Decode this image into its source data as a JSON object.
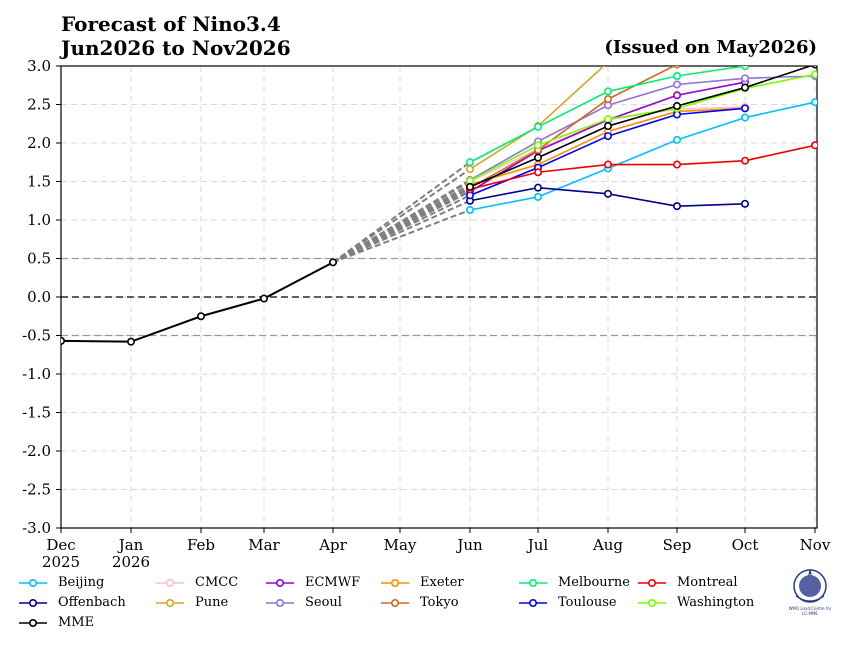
{
  "title_line1": "Forecast of Nino3.4",
  "title_line2": "Jun2026 to Nov2026",
  "issued": "(Issued on May2026)",
  "logo_text": "WMO Lead Centre for LC-MME",
  "chart_data": {
    "type": "line",
    "x_labels": [
      "Dec\n2025",
      "Jan\n2026",
      "Feb",
      "Mar",
      "Apr",
      "May",
      "Jun",
      "Jul",
      "Aug",
      "Sep",
      "Oct",
      "Nov"
    ],
    "ylim": [
      -3.0,
      3.0
    ],
    "yticks": [
      3.0,
      2.5,
      2.0,
      1.5,
      1.0,
      0.5,
      0.0,
      -0.5,
      -1.0,
      -1.5,
      -2.0,
      -2.5,
      -3.0
    ],
    "ytick_labels": [
      "3.0",
      "2.5",
      "2.0",
      "1.5",
      "1.0",
      "0.5",
      "0.0",
      "-0.5",
      "-1.0",
      "-1.5",
      "-2.0",
      "-2.5",
      "-3.0"
    ],
    "reference_lines": [
      0.5,
      0.0,
      -0.5
    ],
    "grid": true,
    "observed": {
      "x": [
        0,
        1,
        2,
        3,
        4
      ],
      "values": [
        -0.57,
        -0.58,
        -0.25,
        -0.02,
        0.45
      ]
    },
    "series": [
      {
        "name": "Beijing",
        "color": "#00bfff",
        "start": 6,
        "values": [
          1.13,
          1.3,
          1.67,
          2.04,
          2.33,
          2.53
        ]
      },
      {
        "name": "Offenbach",
        "color": "#00008b",
        "start": 6,
        "values": [
          1.25,
          1.42,
          1.34,
          1.18,
          1.21
        ]
      },
      {
        "name": "MME",
        "color": "#000000",
        "start": 6,
        "values": [
          1.43,
          1.81,
          2.22,
          2.48,
          2.72,
          3.02
        ]
      },
      {
        "name": "CMCC",
        "color": "#ffc0cb",
        "start": 6,
        "values": [
          1.5,
          1.92,
          2.3,
          2.44,
          2.47
        ]
      },
      {
        "name": "Pune",
        "color": "#daa520",
        "start": 6,
        "values": [
          1.66,
          2.22,
          3.05,
          3.3
        ]
      },
      {
        "name": "ECMWF",
        "color": "#9400d3",
        "start": 6,
        "values": [
          1.37,
          1.9,
          2.3,
          2.62,
          2.79
        ]
      },
      {
        "name": "Seoul",
        "color": "#9370db",
        "start": 6,
        "values": [
          1.52,
          2.02,
          2.49,
          2.76,
          2.84,
          2.87
        ]
      },
      {
        "name": "Exeter",
        "color": "#ff8c00",
        "start": 6,
        "values": [
          1.46,
          1.72,
          2.15,
          2.41,
          2.45
        ]
      },
      {
        "name": "Tokyo",
        "color": "#d2691e",
        "start": 6,
        "values": [
          1.42,
          1.91,
          2.57,
          3.02,
          3.3
        ]
      },
      {
        "name": "Melbourne",
        "color": "#00ee76",
        "start": 6,
        "values": [
          1.75,
          2.21,
          2.67,
          2.87,
          3.0
        ]
      },
      {
        "name": "Toulouse",
        "color": "#0000ff",
        "start": 6,
        "values": [
          1.32,
          1.68,
          2.09,
          2.37,
          2.45
        ]
      },
      {
        "name": "Montreal",
        "color": "#ee0000",
        "start": 6,
        "values": [
          1.4,
          1.62,
          1.72,
          1.72,
          1.77,
          1.97
        ]
      },
      {
        "name": "Washington",
        "color": "#7cfc00",
        "start": 6,
        "values": [
          1.51,
          1.97,
          2.31,
          2.45,
          2.71,
          2.89
        ]
      }
    ]
  }
}
